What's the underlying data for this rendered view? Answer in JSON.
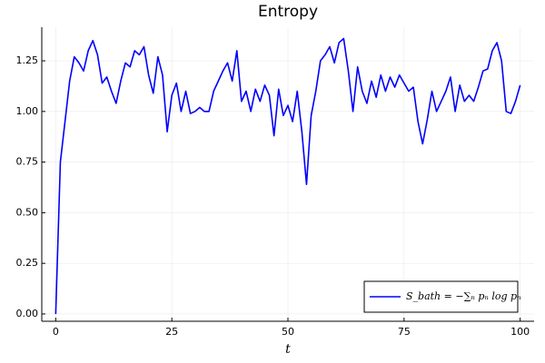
{
  "chart_data": {
    "type": "line",
    "title": "Entropy",
    "xlabel": "t",
    "x": [
      0,
      1,
      2,
      3,
      4,
      5,
      6,
      7,
      8,
      9,
      10,
      11,
      12,
      13,
      14,
      15,
      16,
      17,
      18,
      19,
      20,
      21,
      22,
      23,
      24,
      25,
      26,
      27,
      28,
      29,
      30,
      31,
      32,
      33,
      34,
      35,
      36,
      37,
      38,
      39,
      40,
      41,
      42,
      43,
      44,
      45,
      46,
      47,
      48,
      49,
      50,
      51,
      52,
      53,
      54,
      55,
      56,
      57,
      58,
      59,
      60,
      61,
      62,
      63,
      64,
      65,
      66,
      67,
      68,
      69,
      70,
      71,
      72,
      73,
      74,
      75,
      76,
      77,
      78,
      79,
      80,
      81,
      82,
      83,
      84,
      85,
      86,
      87,
      88,
      89,
      90,
      91,
      92,
      93,
      94,
      95,
      96,
      97,
      98,
      99,
      100
    ],
    "series": [
      {
        "name": "S_bath = −∑ₙ pₙ log pₙ",
        "color": "#0000ff",
        "values": [
          0,
          0.75,
          0.95,
          1.15,
          1.27,
          1.24,
          1.2,
          1.3,
          1.35,
          1.28,
          1.14,
          1.17,
          1.1,
          1.04,
          1.15,
          1.24,
          1.22,
          1.3,
          1.28,
          1.32,
          1.18,
          1.09,
          1.27,
          1.18,
          0.9,
          1.08,
          1.14,
          1.0,
          1.1,
          0.99,
          1.0,
          1.02,
          1.0,
          1.0,
          1.1,
          1.15,
          1.2,
          1.24,
          1.15,
          1.3,
          1.05,
          1.1,
          1.0,
          1.11,
          1.05,
          1.13,
          1.08,
          0.88,
          1.11,
          0.98,
          1.03,
          0.95,
          1.1,
          0.9,
          0.64,
          0.98,
          1.1,
          1.25,
          1.28,
          1.32,
          1.24,
          1.34,
          1.36,
          1.2,
          1.0,
          1.22,
          1.1,
          1.04,
          1.15,
          1.07,
          1.18,
          1.1,
          1.17,
          1.12,
          1.18,
          1.14,
          1.1,
          1.12,
          0.95,
          0.84,
          0.96,
          1.1,
          1.0,
          1.05,
          1.1,
          1.17,
          1.0,
          1.13,
          1.05,
          1.08,
          1.05,
          1.12,
          1.2,
          1.21,
          1.3,
          1.34,
          1.25,
          1.0,
          0.99,
          1.05,
          1.13
        ]
      }
    ],
    "xlim": [
      -3,
      103
    ],
    "ylim": [
      -0.036,
      1.416
    ],
    "xticks": [
      0,
      25,
      50,
      75,
      100
    ],
    "yticks": [
      {
        "value": 0,
        "label": "0.00"
      },
      0.25,
      {
        "value": 0.5,
        "label": "0.50"
      },
      0.75,
      {
        "value": 1,
        "label": "1.00"
      },
      1.25
    ],
    "grid": true,
    "legend": "bottom-right"
  }
}
